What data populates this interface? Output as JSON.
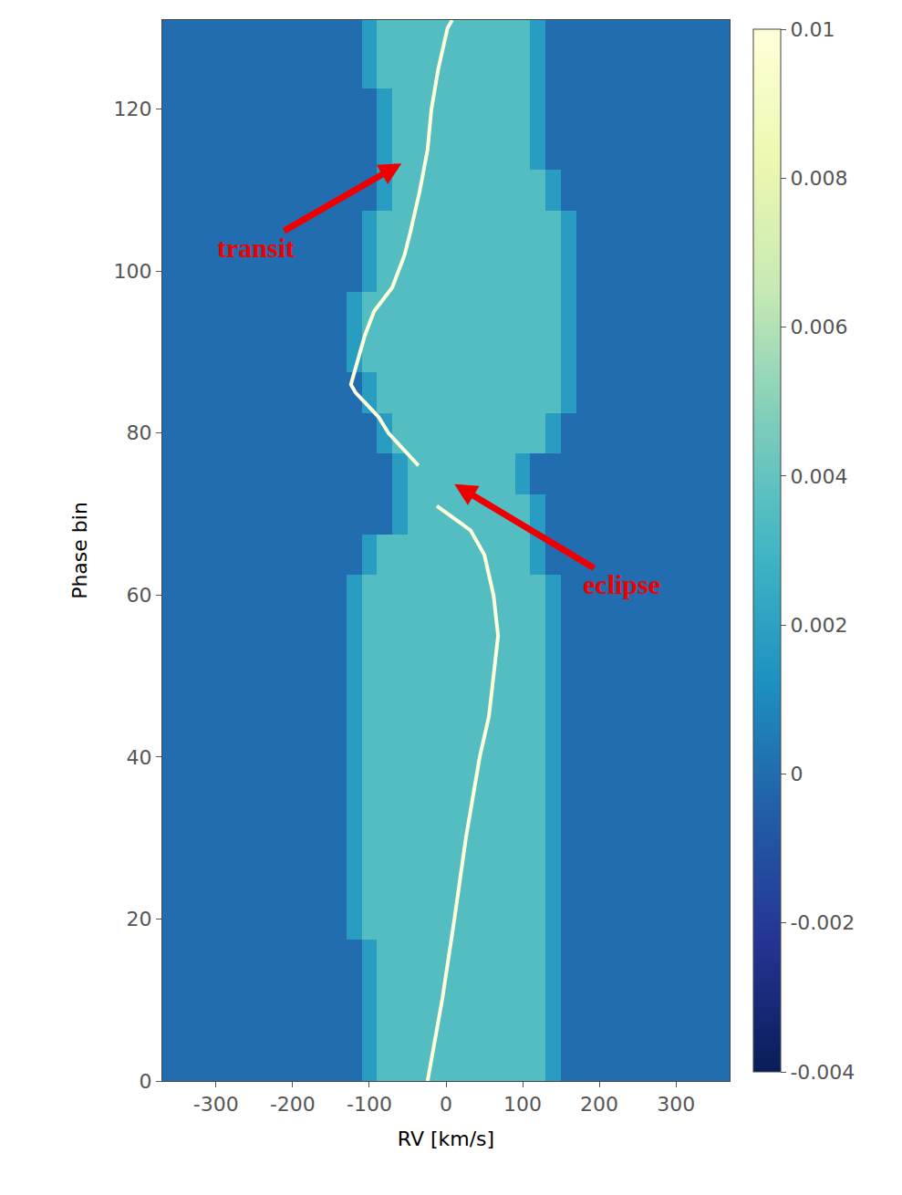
{
  "chart_data": {
    "type": "heatmap",
    "x_label": "RV [km/s]",
    "y_label": "Phase bin",
    "xlim": [
      -370,
      370
    ],
    "xticks": [
      -300,
      -200,
      -100,
      0,
      100,
      200,
      300
    ],
    "ylim": [
      0,
      131
    ],
    "yticks": [
      0,
      20,
      40,
      60,
      80,
      100,
      120
    ],
    "x": [
      -360,
      -340,
      -320,
      -300,
      -280,
      -260,
      -240,
      -220,
      -200,
      -180,
      -160,
      -140,
      -120,
      -100,
      -80,
      -60,
      -40,
      -20,
      0,
      20,
      40,
      60,
      80,
      100,
      120,
      140,
      160,
      180,
      200,
      220,
      240,
      260,
      280,
      300,
      320,
      340,
      360
    ],
    "y": [
      0,
      5,
      10,
      15,
      20,
      25,
      30,
      35,
      40,
      45,
      50,
      55,
      60,
      65,
      70,
      75,
      80,
      85,
      90,
      95,
      100,
      105,
      110,
      115,
      120,
      125,
      130
    ],
    "z": [
      [
        0,
        0,
        0,
        0,
        0,
        0,
        0,
        0,
        0,
        0,
        0,
        0,
        0,
        0.0018,
        0.0035,
        0.0035,
        0.0035,
        0.0035,
        0.0035,
        0.0035,
        0.0035,
        0.0035,
        0.0035,
        0.0035,
        0.0035,
        0.0018,
        0,
        0,
        0,
        0,
        0,
        0,
        0,
        0,
        0,
        0,
        0
      ],
      [
        0,
        0,
        0,
        0,
        0,
        0,
        0,
        0,
        0,
        0,
        0,
        0,
        0,
        0.0018,
        0.0035,
        0.0035,
        0.0035,
        0.0035,
        0.0035,
        0.0035,
        0.0035,
        0.0035,
        0.0035,
        0.0035,
        0.0035,
        0.0018,
        0,
        0,
        0,
        0,
        0,
        0,
        0,
        0,
        0,
        0,
        0
      ],
      [
        0,
        0,
        0,
        0,
        0,
        0,
        0,
        0,
        0,
        0,
        0,
        0,
        0,
        0.0018,
        0.0035,
        0.0035,
        0.0035,
        0.0035,
        0.0035,
        0.0035,
        0.0035,
        0.0035,
        0.0035,
        0.0035,
        0.0035,
        0.0018,
        0,
        0,
        0,
        0,
        0,
        0,
        0,
        0,
        0,
        0,
        0
      ],
      [
        0,
        0,
        0,
        0,
        0,
        0,
        0,
        0,
        0,
        0,
        0,
        0,
        0,
        0.0018,
        0.0035,
        0.0035,
        0.0035,
        0.0035,
        0.0035,
        0.0035,
        0.0035,
        0.0035,
        0.0035,
        0.0035,
        0.0035,
        0.0018,
        0,
        0,
        0,
        0,
        0,
        0,
        0,
        0,
        0,
        0,
        0
      ],
      [
        0,
        0,
        0,
        0,
        0,
        0,
        0,
        0,
        0,
        0,
        0,
        0,
        0.0018,
        0.0035,
        0.0035,
        0.0035,
        0.0035,
        0.0035,
        0.0035,
        0.0035,
        0.0035,
        0.0035,
        0.0035,
        0.0035,
        0.0035,
        0.0018,
        0,
        0,
        0,
        0,
        0,
        0,
        0,
        0,
        0,
        0,
        0
      ],
      [
        0,
        0,
        0,
        0,
        0,
        0,
        0,
        0,
        0,
        0,
        0,
        0,
        0.0018,
        0.0035,
        0.0035,
        0.0035,
        0.0035,
        0.0035,
        0.0035,
        0.0035,
        0.0035,
        0.0035,
        0.0035,
        0.0035,
        0.0035,
        0.0018,
        0,
        0,
        0,
        0,
        0,
        0,
        0,
        0,
        0,
        0,
        0
      ],
      [
        0,
        0,
        0,
        0,
        0,
        0,
        0,
        0,
        0,
        0,
        0,
        0,
        0.0018,
        0.0035,
        0.0035,
        0.0035,
        0.0035,
        0.0035,
        0.0035,
        0.0035,
        0.0035,
        0.0035,
        0.0035,
        0.0035,
        0.0035,
        0.0018,
        0,
        0,
        0,
        0,
        0,
        0,
        0,
        0,
        0,
        0,
        0
      ],
      [
        0,
        0,
        0,
        0,
        0,
        0,
        0,
        0,
        0,
        0,
        0,
        0,
        0.0018,
        0.0035,
        0.0035,
        0.0035,
        0.0035,
        0.0035,
        0.0035,
        0.0035,
        0.0035,
        0.0035,
        0.0035,
        0.0035,
        0.0035,
        0.0018,
        0,
        0,
        0,
        0,
        0,
        0,
        0,
        0,
        0,
        0,
        0
      ],
      [
        0,
        0,
        0,
        0,
        0,
        0,
        0,
        0,
        0,
        0,
        0,
        0,
        0.0018,
        0.0035,
        0.0035,
        0.0035,
        0.0035,
        0.0035,
        0.0035,
        0.0035,
        0.0035,
        0.0035,
        0.0035,
        0.0035,
        0.0035,
        0.0018,
        0,
        0,
        0,
        0,
        0,
        0,
        0,
        0,
        0,
        0,
        0
      ],
      [
        0,
        0,
        0,
        0,
        0,
        0,
        0,
        0,
        0,
        0,
        0,
        0,
        0.0018,
        0.0035,
        0.0035,
        0.0035,
        0.0035,
        0.0035,
        0.0035,
        0.0035,
        0.0035,
        0.0035,
        0.0035,
        0.0035,
        0.0035,
        0.0018,
        0,
        0,
        0,
        0,
        0,
        0,
        0,
        0,
        0,
        0,
        0
      ],
      [
        0,
        0,
        0,
        0,
        0,
        0,
        0,
        0,
        0,
        0,
        0,
        0,
        0.0018,
        0.0035,
        0.0035,
        0.0035,
        0.0035,
        0.0035,
        0.0035,
        0.0035,
        0.0035,
        0.0035,
        0.0035,
        0.0035,
        0.0035,
        0.0018,
        0,
        0,
        0,
        0,
        0,
        0,
        0,
        0,
        0,
        0,
        0
      ],
      [
        0,
        0,
        0,
        0,
        0,
        0,
        0,
        0,
        0,
        0,
        0,
        0,
        0.0018,
        0.0035,
        0.0035,
        0.0035,
        0.0035,
        0.0035,
        0.0035,
        0.0035,
        0.0035,
        0.0035,
        0.0035,
        0.0035,
        0.0035,
        0.0018,
        0,
        0,
        0,
        0,
        0,
        0,
        0,
        0,
        0,
        0,
        0
      ],
      [
        0,
        0,
        0,
        0,
        0,
        0,
        0,
        0,
        0,
        0,
        0,
        0,
        0.0018,
        0.0035,
        0.0035,
        0.0035,
        0.0035,
        0.0035,
        0.0035,
        0.0035,
        0.0035,
        0.0035,
        0.0035,
        0.0035,
        0.0035,
        0.0018,
        0,
        0,
        0,
        0,
        0,
        0,
        0,
        0,
        0,
        0,
        0
      ],
      [
        0,
        0,
        0,
        0,
        0,
        0,
        0,
        0,
        0,
        0,
        0,
        0,
        0,
        0.0018,
        0.0035,
        0.0035,
        0.0035,
        0.0035,
        0.0035,
        0.0035,
        0.0035,
        0.0035,
        0.0035,
        0.0035,
        0.0018,
        0,
        0,
        0,
        0,
        0,
        0,
        0,
        0,
        0,
        0,
        0,
        0
      ],
      [
        0,
        0,
        0,
        0,
        0,
        0,
        0,
        0,
        0,
        0,
        0,
        0,
        0,
        0,
        0,
        0.0018,
        0.0035,
        0.0035,
        0.0035,
        0.0035,
        0.0035,
        0.0035,
        0.0035,
        0.0035,
        0.0018,
        0,
        0,
        0,
        0,
        0,
        0,
        0,
        0,
        0,
        0,
        0,
        0
      ],
      [
        0,
        0,
        0,
        0,
        0,
        0,
        0,
        0,
        0,
        0,
        0,
        0,
        0,
        0,
        0,
        0.0018,
        0.0035,
        0.0035,
        0.0035,
        0.0035,
        0.0035,
        0.0035,
        0.0035,
        0.0018,
        0,
        0,
        0,
        0,
        0,
        0,
        0,
        0,
        0,
        0,
        0,
        0,
        0
      ],
      [
        0,
        0,
        0,
        0,
        0,
        0,
        0,
        0,
        0,
        0,
        0,
        0,
        0,
        0,
        0.0018,
        0.0035,
        0.0035,
        0.0035,
        0.0035,
        0.0035,
        0.0035,
        0.0035,
        0.0035,
        0.0035,
        0.0035,
        0.0018,
        0,
        0,
        0,
        0,
        0,
        0,
        0,
        0,
        0,
        0,
        0
      ],
      [
        0,
        0,
        0,
        0,
        0,
        0,
        0,
        0,
        0,
        0,
        0,
        0,
        0,
        0.0018,
        0.0035,
        0.0035,
        0.0035,
        0.0035,
        0.0035,
        0.0035,
        0.0035,
        0.0035,
        0.0035,
        0.0035,
        0.0035,
        0.0035,
        0.0018,
        0,
        0,
        0,
        0,
        0,
        0,
        0,
        0,
        0,
        0
      ],
      [
        0,
        0,
        0,
        0,
        0,
        0,
        0,
        0,
        0,
        0,
        0,
        0,
        0.0018,
        0.0035,
        0.0035,
        0.0035,
        0.0035,
        0.0035,
        0.0035,
        0.0035,
        0.0035,
        0.0035,
        0.0035,
        0.0035,
        0.0035,
        0.0035,
        0.0018,
        0,
        0,
        0,
        0,
        0,
        0,
        0,
        0,
        0,
        0
      ],
      [
        0,
        0,
        0,
        0,
        0,
        0,
        0,
        0,
        0,
        0,
        0,
        0,
        0.0018,
        0.0035,
        0.0035,
        0.0035,
        0.0035,
        0.0035,
        0.0035,
        0.0035,
        0.0035,
        0.0035,
        0.0035,
        0.0035,
        0.0035,
        0.0035,
        0.0018,
        0,
        0,
        0,
        0,
        0,
        0,
        0,
        0,
        0,
        0
      ],
      [
        0,
        0,
        0,
        0,
        0,
        0,
        0,
        0,
        0,
        0,
        0,
        0,
        0,
        0.0018,
        0.0035,
        0.0035,
        0.0035,
        0.0035,
        0.0035,
        0.0035,
        0.0035,
        0.0035,
        0.0035,
        0.0035,
        0.0035,
        0.0035,
        0.0018,
        0,
        0,
        0,
        0,
        0,
        0,
        0,
        0,
        0,
        0
      ],
      [
        0,
        0,
        0,
        0,
        0,
        0,
        0,
        0,
        0,
        0,
        0,
        0,
        0,
        0.0018,
        0.0035,
        0.0035,
        0.0035,
        0.0035,
        0.0035,
        0.0035,
        0.0035,
        0.0035,
        0.0035,
        0.0035,
        0.0035,
        0.0035,
        0.0018,
        0,
        0,
        0,
        0,
        0,
        0,
        0,
        0,
        0,
        0
      ],
      [
        0,
        0,
        0,
        0,
        0,
        0,
        0,
        0,
        0,
        0,
        0,
        0,
        0,
        0,
        0.0018,
        0.0035,
        0.0035,
        0.0035,
        0.0035,
        0.0035,
        0.0035,
        0.0035,
        0.0035,
        0.0035,
        0.0035,
        0.0018,
        0,
        0,
        0,
        0,
        0,
        0,
        0,
        0,
        0,
        0,
        0
      ],
      [
        0,
        0,
        0,
        0,
        0,
        0,
        0,
        0,
        0,
        0,
        0,
        0,
        0,
        0,
        0.0018,
        0.0035,
        0.0035,
        0.0035,
        0.0035,
        0.0035,
        0.0035,
        0.0035,
        0.0035,
        0.0035,
        0.0018,
        0,
        0,
        0,
        0,
        0,
        0,
        0,
        0,
        0,
        0,
        0,
        0
      ],
      [
        0,
        0,
        0,
        0,
        0,
        0,
        0,
        0,
        0,
        0,
        0,
        0,
        0,
        0,
        0.0018,
        0.0035,
        0.0035,
        0.0035,
        0.0035,
        0.0035,
        0.0035,
        0.0035,
        0.0035,
        0.0035,
        0.0018,
        0,
        0,
        0,
        0,
        0,
        0,
        0,
        0,
        0,
        0,
        0,
        0
      ],
      [
        0,
        0,
        0,
        0,
        0,
        0,
        0,
        0,
        0,
        0,
        0,
        0,
        0,
        0.0018,
        0.0035,
        0.0035,
        0.0035,
        0.0035,
        0.0035,
        0.0035,
        0.0035,
        0.0035,
        0.0035,
        0.0035,
        0.0018,
        0,
        0,
        0,
        0,
        0,
        0,
        0,
        0,
        0,
        0,
        0,
        0
      ],
      [
        0,
        0,
        0,
        0,
        0,
        0,
        0,
        0,
        0,
        0,
        0,
        0,
        0,
        0.0018,
        0.0035,
        0.0035,
        0.0035,
        0.0035,
        0.0035,
        0.0035,
        0.0035,
        0.0035,
        0.0035,
        0.0035,
        0.0018,
        0,
        0,
        0,
        0,
        0,
        0,
        0,
        0,
        0,
        0,
        0,
        0
      ]
    ],
    "colorbar": {
      "range": [
        -0.004,
        0.01
      ],
      "ticks": [
        -0.004,
        -0.002,
        0,
        0.002,
        0.004,
        0.006,
        0.008,
        0.01
      ]
    },
    "track": {
      "x": [
        -24,
        -5,
        11,
        26,
        44,
        56,
        62,
        68,
        62,
        50,
        32,
        2,
        -12,
        null,
        -36,
        -55,
        -75,
        -88,
        -118,
        -124,
        -118,
        -106,
        -94,
        -70,
        -54,
        -46,
        -34,
        -24,
        -19,
        -10,
        2,
        8
      ],
      "y": [
        0,
        10,
        20,
        30,
        40,
        45,
        50,
        55,
        60,
        65,
        68,
        70,
        71,
        73,
        76,
        78,
        80,
        82,
        85,
        86,
        88,
        92,
        95,
        98,
        102,
        105,
        110,
        115,
        120,
        125,
        130,
        131
      ],
      "value": 0.01
    },
    "annotations": [
      {
        "text": "transit",
        "x": -58,
        "y": 113.3
      },
      {
        "text": "eclipse",
        "x": 11,
        "y": 73.7
      }
    ]
  }
}
